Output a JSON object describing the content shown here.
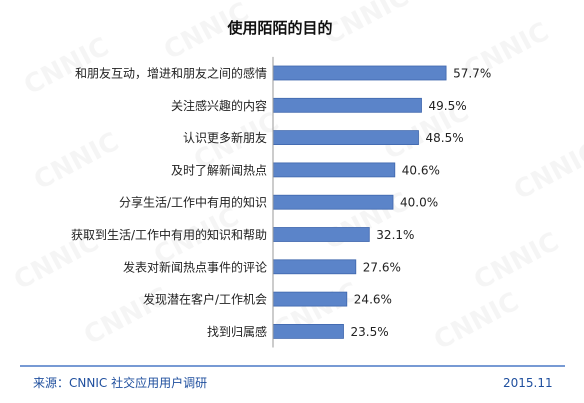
{
  "chart_data": {
    "type": "bar",
    "orientation": "horizontal",
    "title": "使用陌陌的目的",
    "categories": [
      "和朋友互动，增进和朋友之间的感情",
      "关注感兴趣的内容",
      "认识更多新朋友",
      "及时了解新闻热点",
      "分享生活/工作中有用的知识",
      "获取到生活/工作中有用的知识和帮助",
      "发表对新闻热点事件的评论",
      "发现潜在客户/工作机会",
      "找到归属感"
    ],
    "values": [
      57.7,
      49.5,
      48.5,
      40.6,
      40.0,
      32.1,
      27.6,
      24.6,
      23.5
    ],
    "value_labels": [
      "57.7%",
      "49.5%",
      "48.5%",
      "40.6%",
      "40.0%",
      "32.1%",
      "27.6%",
      "24.6%",
      "23.5%"
    ],
    "xlim": [
      0,
      70
    ],
    "grid": false,
    "legend": "none",
    "bar_color": "#5b84c9",
    "bar_edge_color": "#3f67ad"
  },
  "footer": {
    "source": "来源：CNNIC 社交应用用户调研",
    "date": "2015.11",
    "line_color": "#4a78c6",
    "text_color": "#1f4f9e"
  },
  "watermark": {
    "text": "CNNIC"
  }
}
